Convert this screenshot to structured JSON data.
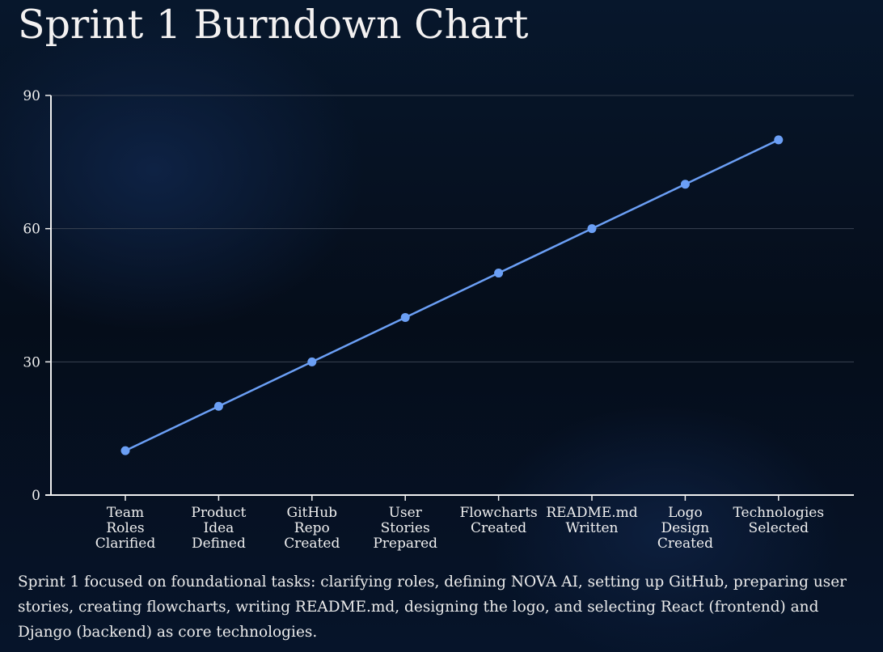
{
  "title": "Sprint 1 Burndown Chart",
  "caption": "Sprint 1 focused on foundational tasks: clarifying roles, defining NOVA AI, setting up GitHub, preparing user stories, creating flowcharts, writing README.md, designing the logo, and selecting React (frontend) and Django (backend) as core technologies.",
  "colors": {
    "line": "#6b9ff5",
    "point": "#6b9ff5",
    "grid": "#3a4352",
    "axis": "#f0f0f0"
  },
  "chart_data": {
    "type": "line",
    "title": "Sprint 1 Burndown Chart",
    "xlabel": "",
    "ylabel": "",
    "categories": [
      [
        "Team",
        "Roles",
        "Clarified"
      ],
      [
        "Product",
        "Idea",
        "Defined"
      ],
      [
        "GitHub",
        "Repo",
        "Created"
      ],
      [
        "User",
        "Stories",
        "Prepared"
      ],
      [
        "Flowcharts",
        "Created"
      ],
      [
        "README.md",
        "Written"
      ],
      [
        "Logo",
        "Design",
        "Created"
      ],
      [
        "Technologies",
        "Selected"
      ]
    ],
    "values": [
      10,
      20,
      30,
      40,
      50,
      60,
      70,
      80
    ],
    "ylim": [
      0,
      90
    ],
    "yticks": [
      "0",
      "30",
      "60",
      "90"
    ],
    "grid": true,
    "legend": "none"
  }
}
